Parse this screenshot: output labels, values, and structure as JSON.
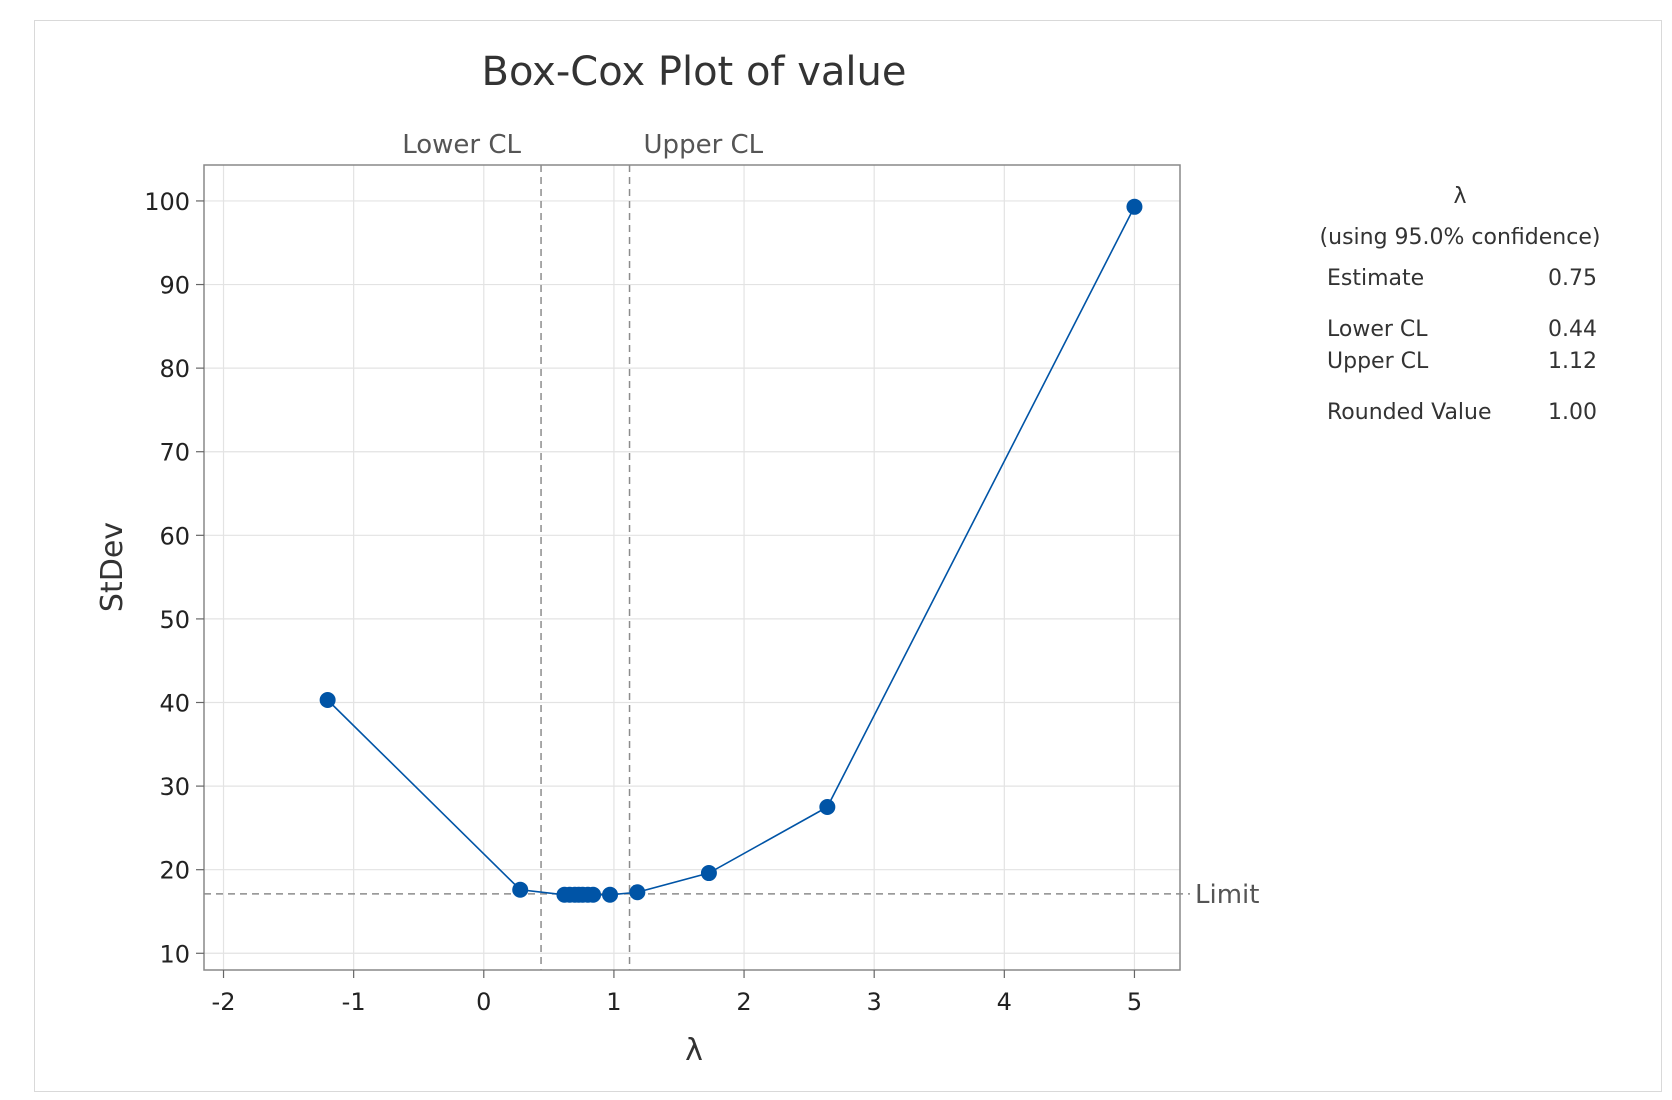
{
  "chart_data": {
    "type": "line",
    "title": "Box-Cox Plot of value",
    "xlabel": "λ",
    "ylabel": "StDev",
    "xlim": [
      -2.15,
      5.35
    ],
    "ylim": [
      8,
      104.3
    ],
    "xticks": [
      "-2",
      "-1",
      "0",
      "1",
      "2",
      "3",
      "4",
      "5"
    ],
    "yticks": [
      "10",
      "20",
      "30",
      "40",
      "50",
      "60",
      "70",
      "80",
      "90",
      "100"
    ],
    "grid": true,
    "series": [
      {
        "color": "#0054a6",
        "x": [
          -1.2,
          0.28,
          0.62,
          0.66,
          0.7,
          0.73,
          0.76,
          0.8,
          0.84,
          0.97,
          1.18,
          1.73,
          2.64,
          5.0
        ],
        "y": [
          40.3,
          17.6,
          17.0,
          17.0,
          17.0,
          17.0,
          17.0,
          17.0,
          17.0,
          17.0,
          17.3,
          19.6,
          27.5,
          99.3
        ]
      }
    ],
    "reference_lines": {
      "lower_cl": {
        "label": "Lower CL",
        "x": 0.44
      },
      "upper_cl": {
        "label": "Upper CL",
        "x": 1.12
      },
      "limit": {
        "label": "Limit",
        "y": 17.1
      }
    },
    "legend": {
      "placement": "right",
      "heading": "λ",
      "subheading": "(using 95.0% confidence)",
      "rows": [
        {
          "label": "Estimate",
          "value": "0.75"
        },
        {
          "label": "Lower CL",
          "value": "0.44"
        },
        {
          "label": "Upper CL",
          "value": "1.12"
        },
        {
          "label": "Rounded Value",
          "value": "1.00"
        }
      ]
    }
  }
}
